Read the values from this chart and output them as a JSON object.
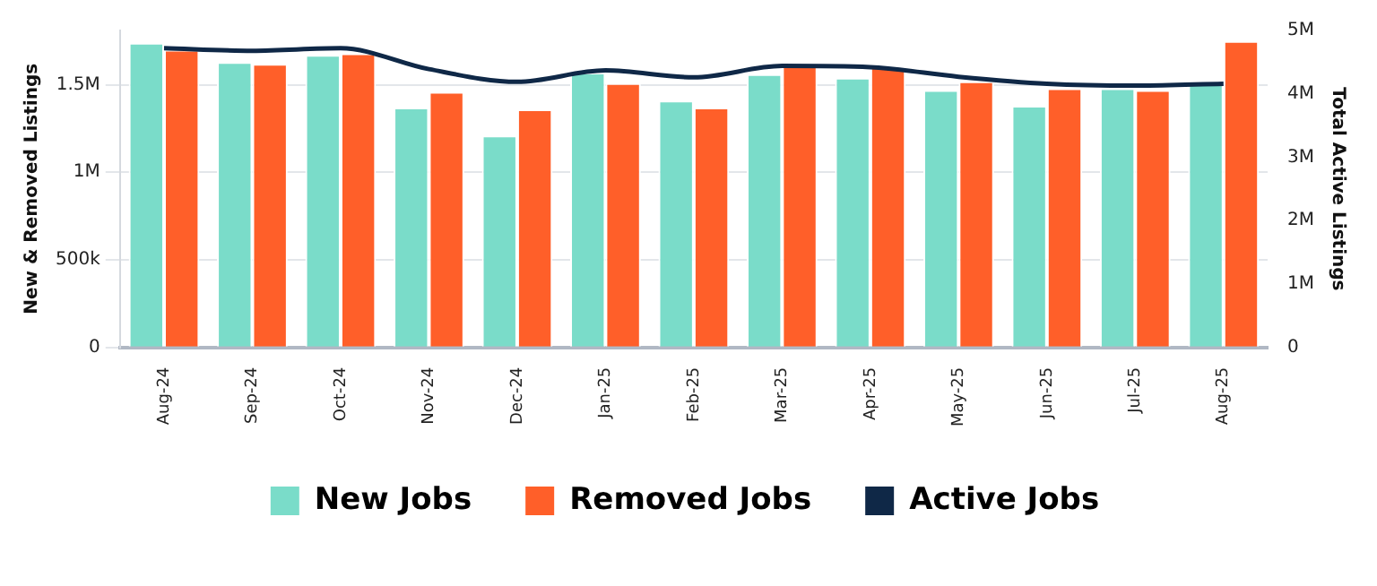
{
  "chart_data": {
    "type": "bar",
    "categories": [
      "Aug-24",
      "Sep-24",
      "Oct-24",
      "Nov-24",
      "Dec-24",
      "Jan-25",
      "Feb-25",
      "Mar-25",
      "Apr-25",
      "May-25",
      "Jun-25",
      "Jul-25",
      "Aug-25"
    ],
    "series": [
      {
        "name": "New Jobs",
        "color": "#7adcc9",
        "values": [
          1740000,
          1630000,
          1670000,
          1370000,
          1210000,
          1570000,
          1410000,
          1560000,
          1540000,
          1470000,
          1380000,
          1480000,
          1520000
        ]
      },
      {
        "name": "Removed Jobs",
        "color": "#ff5f29",
        "values": [
          1700000,
          1620000,
          1680000,
          1460000,
          1360000,
          1510000,
          1370000,
          1610000,
          1600000,
          1520000,
          1480000,
          1470000,
          1750000
        ]
      },
      {
        "name": "Active Jobs",
        "type": "line",
        "axis": "y2",
        "color": "#0f2847",
        "marker": "none",
        "values": [
          4720000,
          4680000,
          4720000,
          4390000,
          4190000,
          4370000,
          4260000,
          4440000,
          4420000,
          4270000,
          4160000,
          4130000,
          4160000
        ]
      }
    ],
    "ylabel": "New & Removed Listings",
    "y2label": "Total Active Listings",
    "ylim": [
      0,
      1810000
    ],
    "yticks": [
      {
        "value": 0,
        "label": "0"
      },
      {
        "value": 500000,
        "label": "500k"
      },
      {
        "value": 1000000,
        "label": "1M"
      },
      {
        "value": 1500000,
        "label": "1.5M"
      }
    ],
    "y2lim": [
      0,
      5000000
    ],
    "y2ticks": [
      {
        "value": 0,
        "label": "0"
      },
      {
        "value": 1000000,
        "label": "1M"
      },
      {
        "value": 2000000,
        "label": "2M"
      },
      {
        "value": 3000000,
        "label": "3M"
      },
      {
        "value": 4000000,
        "label": "4M"
      },
      {
        "value": 5000000,
        "label": "5M"
      }
    ],
    "grid": "y",
    "legend": "bottom"
  }
}
